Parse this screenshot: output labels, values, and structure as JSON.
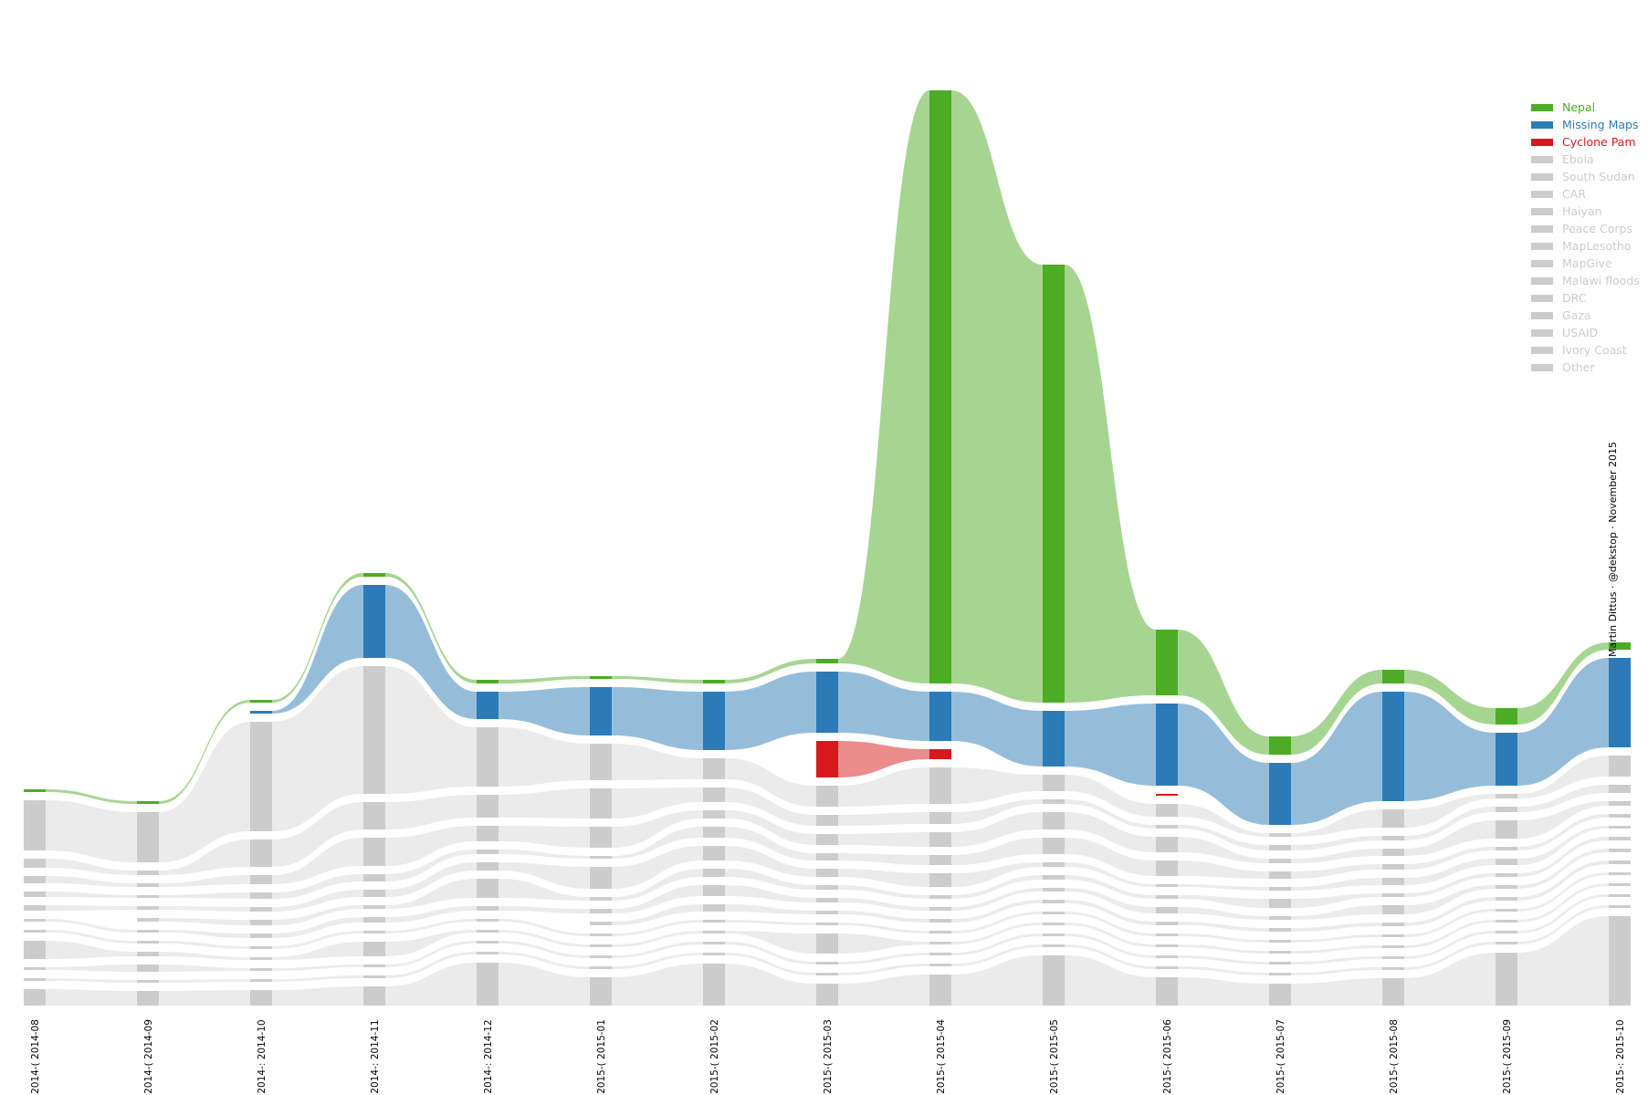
{
  "chart_data": {
    "type": "alluvial",
    "title": "",
    "xlabel": "",
    "ylabel": "",
    "months": [
      "2014-08",
      "2014-09",
      "2014-10",
      "2014-11",
      "2014-12",
      "2015-01",
      "2015-02",
      "2015-03",
      "2015-04",
      "2015-05",
      "2015-06",
      "2015-07",
      "2015-08",
      "2015-09",
      "2015-10"
    ],
    "month_labels": [
      "2014-( 2014-08",
      "2014-( 2014-09",
      "2014-: 2014-10",
      "2014-: 2014-11",
      "2014-: 2014-12",
      "2015-( 2015-01",
      "2015-( 2015-02",
      "2015-( 2015-03",
      "2015-( 2015-04",
      "2015-( 2015-05",
      "2015-( 2015-06",
      "2015-( 2015-07",
      "2015-( 2015-08",
      "2015-( 2015-09",
      "2015-: 2015-10"
    ],
    "series": [
      {
        "name": "Nepal",
        "color": "#4dac26",
        "highlight": true,
        "values": [
          0.3,
          0.3,
          0.3,
          0.4,
          0.4,
          0.3,
          0.4,
          0.5,
          65,
          48,
          7.2,
          2,
          1.5,
          1.8,
          0.8
        ]
      },
      {
        "name": "Missing Maps",
        "color": "#2c7bb6",
        "highlight": true,
        "values": [
          0,
          0,
          0.3,
          8,
          3,
          5.3,
          6.4,
          6.7,
          5.4,
          6.1,
          9,
          6.8,
          12,
          5.8,
          9.8
        ]
      },
      {
        "name": "Cyclone Pam",
        "color": "#d7191c",
        "highlight": true,
        "values": [
          0,
          0,
          0,
          0,
          0,
          0,
          0,
          4,
          1.1,
          0,
          0.2,
          0,
          0,
          0,
          0
        ]
      },
      {
        "name": "Ebola",
        "color": "#cccccc",
        "highlight": false,
        "values": [
          5.5,
          5.5,
          12,
          14,
          6.5,
          4,
          2.3,
          2.3,
          4,
          1.8,
          1.4,
          0.4,
          2,
          0.5,
          2.3
        ]
      },
      {
        "name": "South Sudan",
        "color": "#cccccc",
        "highlight": false,
        "values": [
          1,
          0.5,
          3,
          3,
          2.5,
          3.3,
          1.6,
          1.2,
          1.3,
          0.5,
          0.4,
          0.6,
          0.5,
          0.6,
          0.9
        ]
      },
      {
        "name": "CAR",
        "color": "#cccccc",
        "highlight": false,
        "values": [
          0.8,
          0.4,
          1,
          3.1,
          1.7,
          2.3,
          0.9,
          1.2,
          1.6,
          1.9,
          1.7,
          0.5,
          0.8,
          2,
          0.5
        ]
      },
      {
        "name": "Haiyan",
        "color": "#cccccc",
        "highlight": false,
        "values": [
          0.6,
          0.3,
          0.7,
          0.8,
          0.5,
          0.3,
          1.2,
          0.8,
          1.1,
          1.8,
          1.7,
          0.8,
          0.6,
          0.4,
          0.4
        ]
      },
      {
        "name": "Peace Corps",
        "color": "#cccccc",
        "highlight": false,
        "values": [
          0.6,
          0.4,
          0.5,
          0.8,
          0.9,
          2.4,
          1.6,
          0.9,
          1.5,
          0.5,
          0.3,
          0.4,
          0.8,
          0.7,
          0.3
        ]
      },
      {
        "name": "MapLesotho",
        "color": "#cccccc",
        "highlight": false,
        "values": [
          0,
          0.4,
          0.6,
          0.4,
          2.1,
          0.4,
          0.9,
          0.5,
          0.4,
          0.5,
          0.4,
          1,
          0.4,
          0.4,
          0.4
        ]
      },
      {
        "name": "MapGive",
        "color": "#cccccc",
        "highlight": false,
        "values": [
          0.3,
          0.3,
          0.5,
          0.6,
          0.5,
          0.5,
          1.2,
          0.5,
          0.4,
          0.4,
          0.7,
          0.4,
          1,
          0.4,
          0.4
        ]
      },
      {
        "name": "Malawi floods",
        "color": "#cccccc",
        "highlight": false,
        "values": [
          0,
          0,
          0,
          0,
          0,
          0.4,
          0.8,
          0.4,
          0.4,
          0.4,
          0.4,
          0.4,
          0.4,
          0.4,
          0.4
        ]
      },
      {
        "name": "DRC",
        "color": "#cccccc",
        "highlight": false,
        "values": [
          0.3,
          0.3,
          0.3,
          0.3,
          0.3,
          0.3,
          0.3,
          0.3,
          0.3,
          0.3,
          0.3,
          0.3,
          0.3,
          0.3,
          0.3
        ]
      },
      {
        "name": "Gaza",
        "color": "#cccccc",
        "highlight": false,
        "values": [
          2,
          0.5,
          0.3,
          1.6,
          0.3,
          0.3,
          0.3,
          2.2,
          0.3,
          0.3,
          0.3,
          0.3,
          0.3,
          0.3,
          0.3
        ]
      },
      {
        "name": "USAID",
        "color": "#cccccc",
        "highlight": false,
        "values": [
          0.3,
          0.8,
          0.3,
          0.3,
          0.3,
          0.3,
          0.3,
          0.3,
          0.3,
          0.3,
          0.3,
          0.3,
          0.3,
          0.3,
          0.3
        ]
      },
      {
        "name": "Ivory Coast",
        "color": "#cccccc",
        "highlight": false,
        "values": [
          0.3,
          0.3,
          0.3,
          0.3,
          0.3,
          0.3,
          0.3,
          0.3,
          0.3,
          0.3,
          0.3,
          0.3,
          0.3,
          0.3,
          0.3
        ]
      },
      {
        "name": "Other",
        "color": "#cccccc",
        "highlight": false,
        "values": [
          1.8,
          1.6,
          1.7,
          2.1,
          4.7,
          3.1,
          4.6,
          2.4,
          3.4,
          5.5,
          3.1,
          2.4,
          3,
          5.8,
          9.8
        ]
      }
    ]
  },
  "credit": "Martin Dittus · @dekstop · November 2015",
  "colors": {
    "nepal": "#4dac26",
    "missing_maps": "#2c7bb6",
    "cyclone_pam": "#d7191c",
    "inactive": "#cccccc",
    "inactive_flow": "#e6e6e6"
  }
}
